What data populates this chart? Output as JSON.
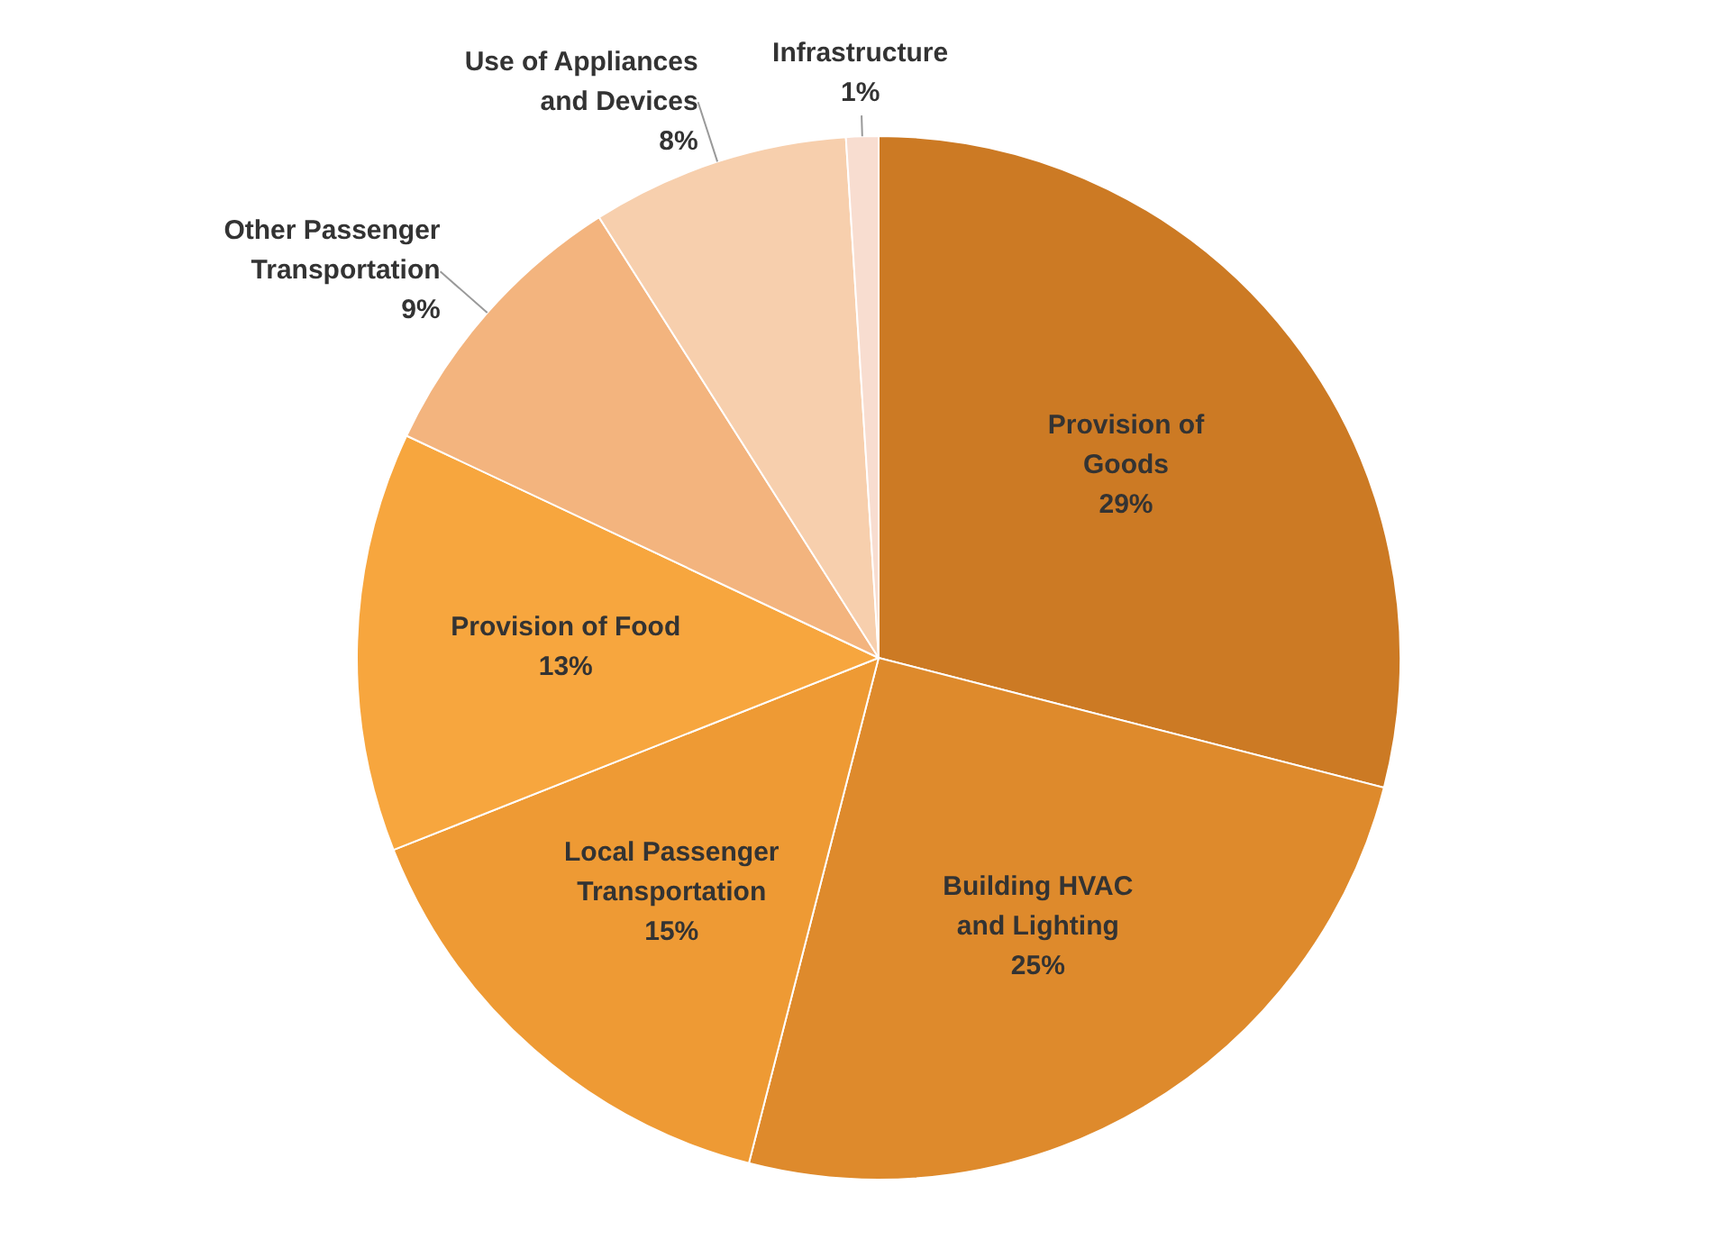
{
  "chart_data": {
    "type": "pie",
    "categories": [
      "Provision of Goods",
      "Building HVAC and Lighting",
      "Local Passenger Transportation",
      "Provision of Food",
      "Other Passenger Transportation",
      "Use of Appliances and Devices",
      "Infrastructure"
    ],
    "values": [
      29,
      25,
      15,
      13,
      9,
      8,
      1
    ],
    "value_labels": [
      "29%",
      "25%",
      "15%",
      "13%",
      "9%",
      "8%",
      "1%"
    ],
    "colors": [
      "#cc7a24",
      "#de8a2c",
      "#ee9a34",
      "#f7a63e",
      "#f3b47e",
      "#f7cfad",
      "#f8ddd0"
    ],
    "legend": false
  }
}
